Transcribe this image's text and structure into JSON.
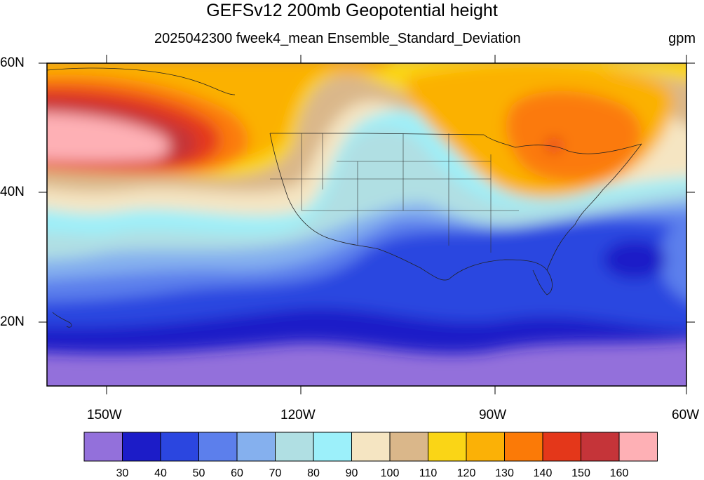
{
  "title": "GEFSv12 200mb Geopotential height",
  "subtitle": "2025042300 fweek4_mean Ensemble_Standard_Deviation",
  "units": "gpm",
  "axes": {
    "lat_labels": [
      "60N",
      "40N",
      "20N"
    ],
    "lon_labels": [
      "150W",
      "120W",
      "90W",
      "60W"
    ]
  },
  "colorbar": {
    "labels": [
      "30",
      "40",
      "50",
      "60",
      "70",
      "80",
      "90",
      "100",
      "110",
      "120",
      "130",
      "140",
      "150",
      "160"
    ],
    "colors": [
      "#9370db",
      "#1c1cc8",
      "#2b46e0",
      "#5c7fec",
      "#85b0ee",
      "#b0dfe3",
      "#9cf0fa",
      "#f5e5c2",
      "#dab78a",
      "#fad516",
      "#fbb106",
      "#fb7a07",
      "#e4371a",
      "#c53439",
      "#feb0b5"
    ]
  },
  "map": {
    "region": "North Pacific / North America / Western Atlantic",
    "lat_range": [
      10,
      60
    ],
    "lon_range": [
      -160,
      -60
    ],
    "field": "200mb geopotential height ensemble standard deviation"
  }
}
